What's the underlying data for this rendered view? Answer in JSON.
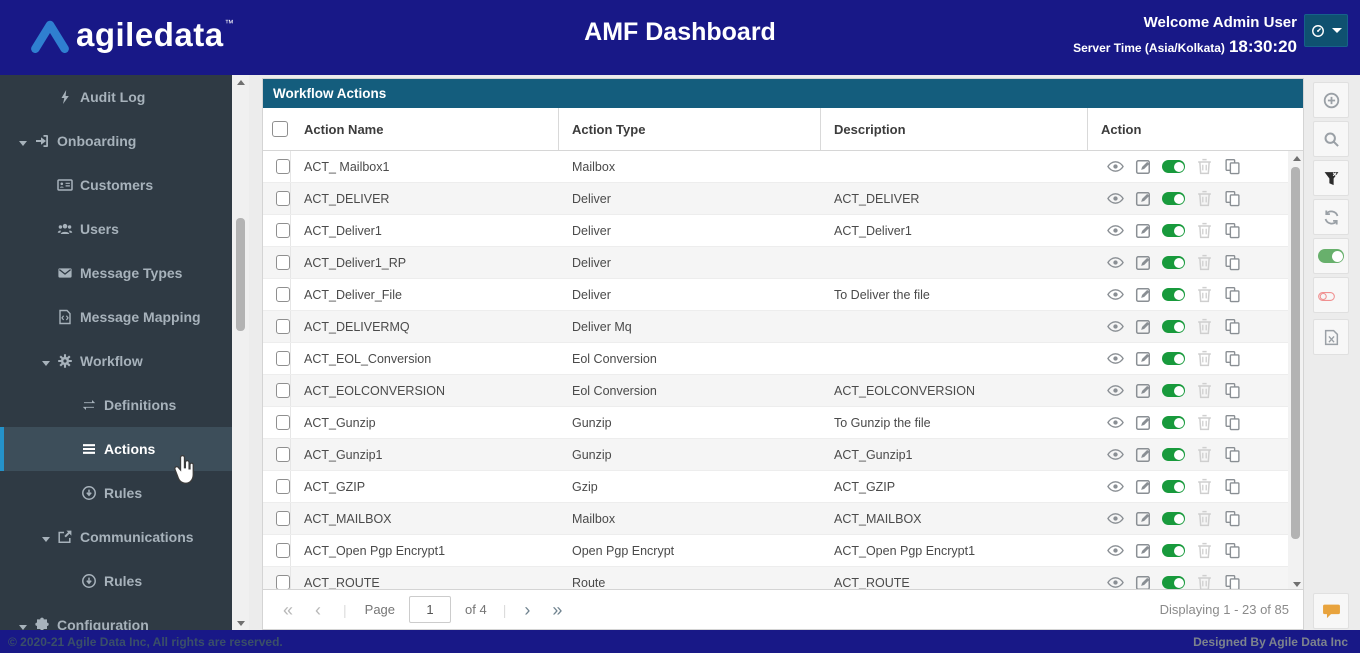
{
  "header": {
    "brand": "agiledata",
    "brand_tm": "™",
    "title": "AMF Dashboard",
    "welcome": "Welcome Admin User",
    "server_time_label": "Server Time (Asia/Kolkata)",
    "server_time": "18:30:20",
    "account_icon": "account-clock-icon",
    "account_caret_icon": "chevron-down-icon"
  },
  "sidebar": {
    "items": [
      {
        "label": "Audit Log",
        "icon": "lightning",
        "level": 1,
        "caret": false,
        "active": false
      },
      {
        "label": "Onboarding",
        "icon": "sign-in",
        "level": 0,
        "caret": true,
        "active": false
      },
      {
        "label": "Customers",
        "icon": "id-card",
        "level": 1,
        "caret": false,
        "active": false
      },
      {
        "label": "Users",
        "icon": "users",
        "level": 1,
        "caret": false,
        "active": false
      },
      {
        "label": "Message Types",
        "icon": "envelope",
        "level": 1,
        "caret": false,
        "active": false
      },
      {
        "label": "Message Mapping",
        "icon": "file-code",
        "level": 1,
        "caret": false,
        "active": false
      },
      {
        "label": "Workflow",
        "icon": "gear",
        "level": 1,
        "caret": true,
        "active": false
      },
      {
        "label": "Definitions",
        "icon": "exchange",
        "level": 2,
        "caret": false,
        "active": false
      },
      {
        "label": "Actions",
        "icon": "menu",
        "level": 2,
        "caret": false,
        "active": true
      },
      {
        "label": "Rules",
        "icon": "circle-down",
        "level": 2,
        "caret": false,
        "active": false
      },
      {
        "label": "Communications",
        "icon": "share",
        "level": 1,
        "caret": true,
        "active": false
      },
      {
        "label": "Rules",
        "icon": "circle-down",
        "level": 2,
        "caret": false,
        "active": false
      },
      {
        "label": "Configuration",
        "icon": "puzzle",
        "level": 0,
        "caret": true,
        "active": false
      }
    ]
  },
  "panel": {
    "title": "Workflow Actions",
    "columns": {
      "name": "Action Name",
      "type": "Action Type",
      "desc": "Description",
      "action": "Action"
    },
    "row_action_icons": [
      "view-icon",
      "edit-icon",
      "toggle-on-icon",
      "delete-icon",
      "copy-icon"
    ],
    "rows": [
      {
        "name": "ACT_ Mailbox1",
        "type": "Mailbox",
        "desc": ""
      },
      {
        "name": "ACT_DELIVER",
        "type": "Deliver",
        "desc": "ACT_DELIVER"
      },
      {
        "name": "ACT_Deliver1",
        "type": "Deliver",
        "desc": "ACT_Deliver1"
      },
      {
        "name": "ACT_Deliver1_RP",
        "type": "Deliver",
        "desc": ""
      },
      {
        "name": "ACT_Deliver_File",
        "type": "Deliver",
        "desc": "To Deliver the file"
      },
      {
        "name": "ACT_DELIVERMQ",
        "type": "Deliver Mq",
        "desc": ""
      },
      {
        "name": "ACT_EOL_Conversion",
        "type": "Eol Conversion",
        "desc": ""
      },
      {
        "name": "ACT_EOLCONVERSION",
        "type": "Eol Conversion",
        "desc": "ACT_EOLCONVERSION"
      },
      {
        "name": "ACT_Gunzip",
        "type": "Gunzip",
        "desc": "To Gunzip the file"
      },
      {
        "name": "ACT_Gunzip1",
        "type": "Gunzip",
        "desc": "ACT_Gunzip1"
      },
      {
        "name": "ACT_GZIP",
        "type": "Gzip",
        "desc": "ACT_GZIP"
      },
      {
        "name": "ACT_MAILBOX",
        "type": "Mailbox",
        "desc": "ACT_MAILBOX"
      },
      {
        "name": "ACT_Open Pgp Encrypt1",
        "type": "Open Pgp Encrypt",
        "desc": "ACT_Open Pgp Encrypt1"
      },
      {
        "name": "ACT_ROUTE",
        "type": "Route",
        "desc": "ACT_ROUTE"
      }
    ]
  },
  "pagination": {
    "first": "«",
    "prev": "‹",
    "next": "›",
    "last": "»",
    "page_label": "Page",
    "page_value": "1",
    "of_label": "of 4",
    "display_text": "Displaying 1 - 23 of 85"
  },
  "toolbar": {
    "buttons": [
      {
        "name": "add",
        "icon": "plus-circle-icon"
      },
      {
        "name": "search",
        "icon": "search-icon"
      },
      {
        "name": "filter",
        "icon": "filter-icon"
      },
      {
        "name": "refresh",
        "icon": "refresh-icon"
      },
      {
        "name": "enable-all",
        "icon": "toggle-on-icon"
      },
      {
        "name": "disable-all",
        "icon": "toggle-off-icon"
      },
      {
        "name": "export",
        "icon": "excel-file-icon"
      }
    ],
    "chat_icon": "chat-bubble-icon"
  },
  "footer": {
    "left": "© 2020-21 Agile Data Inc, All rights are reserved.",
    "right": "Designed By Agile Data Inc"
  },
  "colors": {
    "header_navy": "#181887",
    "panel_teal": "#145d7d",
    "sidebar_dark": "#2f3a44",
    "active_accent_blue": "#2492c9",
    "toggle_on_green": "#189a3c",
    "toggle_off_red": "#f09090",
    "chat_orange": "#e8a33d",
    "brand_chevron_blue": "#2f7fd0"
  }
}
